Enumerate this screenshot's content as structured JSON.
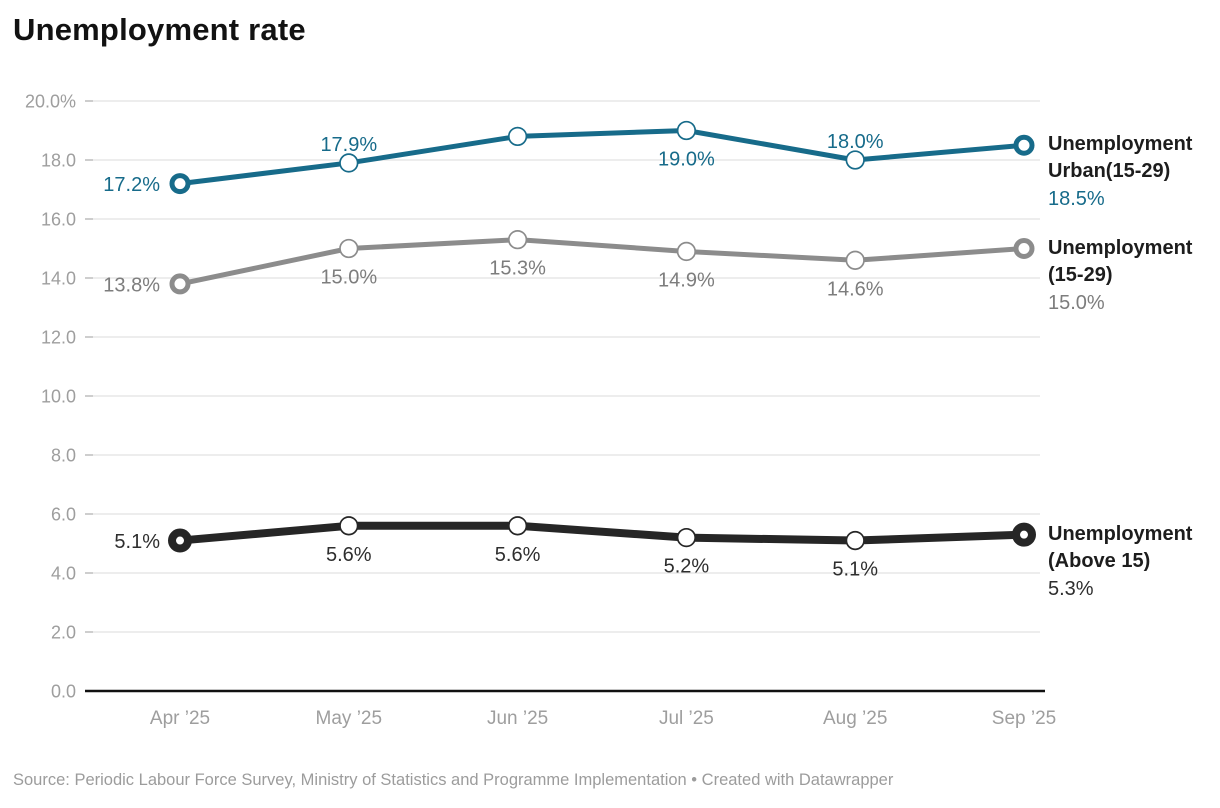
{
  "title": "Unemployment rate",
  "source_note": "Source: Periodic Labour Force Survey, Ministry of Statistics and Programme Implementation • Created with Datawrapper",
  "colors": {
    "teal": "#176b8a",
    "gray_line": "#8c8c8c",
    "black_line": "#262626",
    "axis_label": "#9e9e9e",
    "gridline": "#e7e7e7",
    "tick": "#c4c4c4",
    "axis_line": "#111111",
    "title_text": "#121212",
    "legend_name_text": "#1d1d1d",
    "source_text": "#9c9c9c"
  },
  "chart_data": {
    "type": "line",
    "x": [
      "Apr ’25",
      "May ’25",
      "Jun ’25",
      "Jul ’25",
      "Aug ’25",
      "Sep ’25"
    ],
    "ylim": [
      0,
      20
    ],
    "ytick_step": 2,
    "ytick_labels": [
      "0.0",
      "2.0",
      "4.0",
      "6.0",
      "8.0",
      "10.0",
      "12.0",
      "14.0",
      "16.0",
      "18.0",
      "20.0%"
    ],
    "grid": true,
    "legend_position": "right of line ends",
    "series": [
      {
        "id": "urban-15-29",
        "name": "Unemployment Urban(15-29)",
        "legend_lines": [
          "Unemployment",
          "Urban(15-29)"
        ],
        "legend_value": "18.5%",
        "color": "#176b8a",
        "label_color": "#176b8a",
        "stroke_width": 5,
        "values": [
          17.2,
          17.9,
          18.8,
          19.0,
          18.0,
          18.5
        ],
        "point_labels": [
          "17.2%",
          "17.9%",
          "",
          "19.0%",
          "18.0%",
          ""
        ],
        "label_placement": [
          "left",
          "above",
          "none",
          "below",
          "above",
          "legend"
        ]
      },
      {
        "id": "all-15-29",
        "name": "Unemployment (15-29)",
        "legend_lines": [
          "Unemployment",
          "(15-29)"
        ],
        "legend_value": "15.0%",
        "color": "#8c8c8c",
        "label_color": "#7d7d7d",
        "stroke_width": 5,
        "values": [
          13.8,
          15.0,
          15.3,
          14.9,
          14.6,
          15.0
        ],
        "point_labels": [
          "13.8%",
          "15.0%",
          "15.3%",
          "14.9%",
          "14.6%",
          ""
        ],
        "label_placement": [
          "left",
          "below",
          "below",
          "below",
          "below",
          "legend"
        ]
      },
      {
        "id": "above-15",
        "name": "Unemployment (Above 15)",
        "legend_lines": [
          "Unemployment",
          "(Above 15)"
        ],
        "legend_value": "5.3%",
        "color": "#262626",
        "label_color": "#2e2e2e",
        "stroke_width": 8,
        "values": [
          5.1,
          5.6,
          5.6,
          5.2,
          5.1,
          5.3
        ],
        "point_labels": [
          "5.1%",
          "5.6%",
          "5.6%",
          "5.2%",
          "5.1%",
          ""
        ],
        "label_placement": [
          "left",
          "below",
          "below",
          "below",
          "below",
          "legend"
        ]
      }
    ]
  }
}
